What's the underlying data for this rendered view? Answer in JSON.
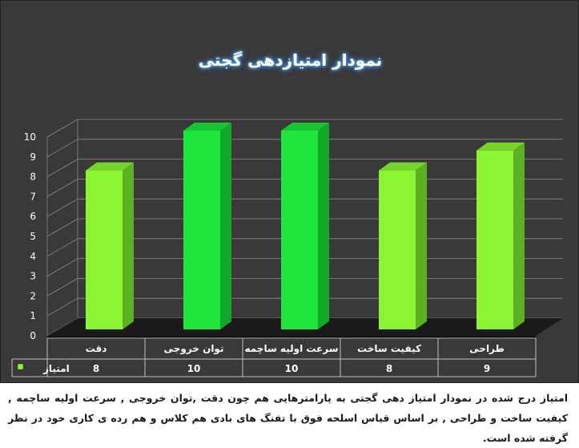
{
  "chart_data": {
    "type": "bar",
    "title": "نمودار امتیازدهی گجتی",
    "categories": [
      "دقت",
      "توان خروجی",
      "سرعت اولیه ساچمه",
      "کیفیت ساخت",
      "طراحی"
    ],
    "series": [
      {
        "name": "امتیاز",
        "values": [
          8,
          10,
          10,
          8,
          9
        ]
      }
    ],
    "ylim": [
      0,
      10
    ],
    "yticks": [
      0,
      1,
      2,
      3,
      4,
      5,
      6,
      7,
      8,
      9,
      10
    ],
    "grid": true,
    "legend": "data-table",
    "colors": {
      "light_bar": "#8cf533",
      "dark_bar": "#1ee63a",
      "background": "#3a3838"
    }
  },
  "caption": "امتیاز درج شده در نمودار امتیاز دهی گجتی  به پارامترهایی هم چون دقت ,توان خروجی , سرعت اولیه ساچمه , کیفیت ساخت و طراحی , بر اساس قیاس اسلحه فوق با تفنگ های بادی هم کلاس و هم رده ی کاری خود در نظر گرفته شده است."
}
